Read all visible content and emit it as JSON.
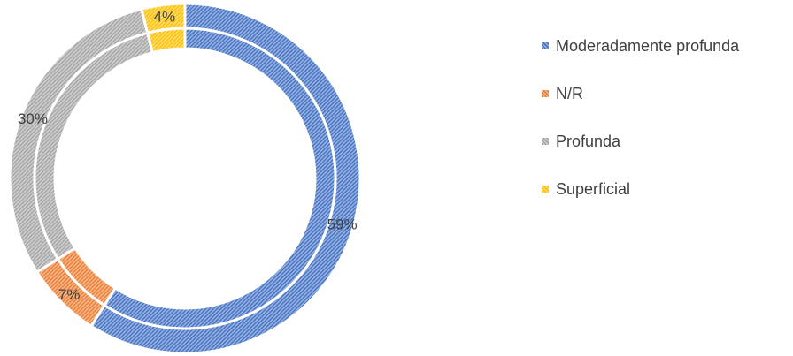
{
  "chart_data": {
    "type": "pie",
    "style": "doughnut",
    "title": "",
    "rings": [
      {
        "name": "",
        "categories": [
          "Moderadamente profunda",
          "N/R",
          "Profunda",
          "Superficial"
        ],
        "values": [
          59,
          7,
          30,
          4
        ],
        "labels": [
          "59%",
          "7%",
          "30%",
          "4%"
        ]
      },
      {
        "name": "",
        "categories": [
          "Moderadamente profunda",
          "N/R",
          "Profunda",
          "Superficial"
        ],
        "values": [
          59,
          7,
          30,
          4
        ],
        "labels": []
      }
    ],
    "colors": [
      "#4472C4",
      "#ED7D31",
      "#A5A5A5",
      "#FFC000"
    ],
    "fill_pattern": "diagonal-hatch",
    "legend": {
      "position": "right",
      "entries": [
        "Moderadamente profunda",
        "N/R",
        "Profunda",
        "Superficial"
      ]
    }
  }
}
